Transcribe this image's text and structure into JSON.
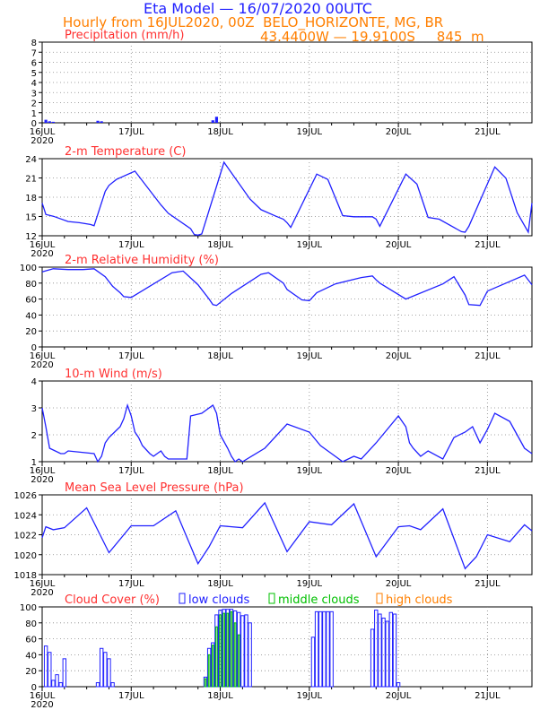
{
  "header": {
    "title": "Eta Model — 16/07/2020 00UTC",
    "subtitle": "Hourly from 16JUL2020, 00Z  BELO_HORIZONTE, MG, BR",
    "location": "43.4400W — 19.9100S     845  m",
    "title_color": "#2020ff",
    "subtitle_color": "#ff7f00"
  },
  "x_axis": {
    "days": [
      "16JUL",
      "17JUL",
      "18JUL",
      "19JUL",
      "20JUL",
      "21JUL"
    ],
    "year": "2020",
    "range_hours": [
      0,
      132
    ]
  },
  "legend": {
    "low": "low clouds",
    "middle": "middle clouds",
    "high": "high clouds",
    "low_color": "#2020ff",
    "middle_color": "#00c000",
    "high_color": "#ff7f00"
  },
  "chart_data": [
    {
      "type": "bar",
      "title": "Precipitation (mm/h)",
      "ylim": [
        0,
        8
      ],
      "yticks": [
        "0",
        "1",
        "2",
        "3",
        "4",
        "5",
        "6",
        "7",
        "8"
      ],
      "x": [
        1,
        2,
        3,
        15,
        16,
        46,
        47
      ],
      "values": [
        0.3,
        0.15,
        0.1,
        0.2,
        0.15,
        0.25,
        0.6
      ],
      "color": "#2020ff",
      "grid": true
    },
    {
      "type": "line",
      "title": "2-m Temperature (C)",
      "ylim": [
        12,
        25
      ],
      "yticks": [
        "12",
        "15",
        "18",
        "21",
        "24"
      ],
      "x": [
        0,
        1,
        3,
        7,
        10,
        13,
        14,
        17,
        18,
        20,
        25,
        32,
        34,
        40,
        41,
        42,
        43,
        49,
        56,
        59,
        63,
        65,
        66,
        67,
        74,
        77,
        81,
        84,
        89,
        90,
        91,
        98,
        101,
        104,
        107,
        113,
        114,
        115,
        122,
        125,
        128,
        131,
        132
      ],
      "values": [
        17.5,
        15.6,
        15.3,
        14.4,
        14.2,
        13.9,
        13.7,
        19.5,
        20.5,
        21.5,
        22.9,
        17.2,
        15.8,
        13.2,
        12.2,
        12.1,
        12.3,
        24.4,
        18.2,
        16.4,
        15.3,
        14.8,
        14.2,
        13.4,
        22.4,
        21.5,
        15.4,
        15.2,
        15.2,
        14.8,
        13.6,
        22.4,
        20.7,
        15.1,
        14.8,
        12.7,
        12.6,
        13.6,
        23.6,
        21.7,
        15.9,
        12.6,
        17.5
      ],
      "color": "#2020ff",
      "grid": true
    },
    {
      "type": "line",
      "title": "2-m Relative Humidity (%)",
      "ylim": [
        0,
        100
      ],
      "yticks": [
        "0",
        "20",
        "40",
        "60",
        "80",
        "100"
      ],
      "x": [
        0,
        3,
        7,
        11,
        14,
        17,
        19,
        21,
        22,
        24,
        35,
        38,
        42,
        45,
        46,
        47,
        51,
        59,
        61,
        65,
        66,
        70,
        72,
        74,
        79,
        86,
        89,
        90,
        91,
        98,
        108,
        111,
        114,
        115,
        118,
        120,
        130,
        132
      ],
      "values": [
        94,
        98,
        97,
        97,
        98,
        88,
        76,
        68,
        63,
        62,
        93,
        95,
        78,
        60,
        53,
        52,
        67,
        91,
        93,
        80,
        72,
        59,
        58,
        68,
        79,
        87,
        89,
        84,
        80,
        60,
        79,
        88,
        65,
        53,
        52,
        70,
        90,
        78
      ],
      "color": "#2020ff",
      "grid": true
    },
    {
      "type": "line",
      "title": "10-m Wind (m/s)",
      "ylim": [
        1,
        4
      ],
      "yticks": [
        "1",
        "2",
        "3",
        "4"
      ],
      "x": [
        0,
        1,
        2,
        5,
        6,
        7,
        14,
        15,
        16,
        17,
        18,
        21,
        22,
        23,
        24,
        25,
        26,
        27,
        29,
        30,
        31,
        32,
        33,
        34,
        35,
        36,
        39,
        40,
        43,
        46,
        47,
        48,
        50,
        51,
        52,
        53,
        54,
        60,
        66,
        72,
        75,
        78,
        81,
        84,
        86,
        90,
        96,
        98,
        99,
        100,
        102,
        104,
        108,
        111,
        114,
        116,
        118,
        120,
        122,
        126,
        130,
        132
      ],
      "values": [
        3.0,
        2.3,
        1.5,
        1.3,
        1.3,
        1.4,
        1.3,
        1.0,
        1.2,
        1.7,
        1.9,
        2.3,
        2.6,
        3.1,
        2.7,
        2.1,
        1.9,
        1.6,
        1.3,
        1.2,
        1.3,
        1.4,
        1.2,
        1.1,
        1.1,
        1.1,
        1.1,
        2.7,
        2.8,
        3.1,
        2.8,
        2.0,
        1.5,
        1.2,
        1.0,
        1.1,
        1.0,
        1.5,
        2.4,
        2.1,
        1.6,
        1.3,
        1.0,
        1.2,
        1.1,
        1.7,
        2.7,
        2.3,
        1.7,
        1.5,
        1.2,
        1.4,
        1.1,
        1.9,
        2.1,
        2.3,
        1.7,
        2.2,
        2.8,
        2.5,
        1.5,
        1.3
      ],
      "color": "#2020ff",
      "grid": true
    },
    {
      "type": "line",
      "title": "Mean Sea Level Pressure (hPa)",
      "ylim": [
        1018,
        1026
      ],
      "yticks": [
        "1018",
        "1020",
        "1022",
        "1024",
        "1026"
      ],
      "x": [
        0,
        1,
        3,
        6,
        12,
        18,
        24,
        30,
        36,
        42,
        45,
        48,
        54,
        60,
        66,
        72,
        78,
        84,
        90,
        96,
        99,
        102,
        108,
        114,
        117,
        120,
        126,
        130,
        132
      ],
      "values": [
        1021.7,
        1022.8,
        1022.5,
        1022.7,
        1024.7,
        1020.2,
        1022.9,
        1022.9,
        1024.4,
        1019.1,
        1020.8,
        1022.9,
        1022.7,
        1025.2,
        1020.3,
        1023.3,
        1023.0,
        1025.1,
        1019.8,
        1022.8,
        1022.9,
        1022.5,
        1024.6,
        1018.6,
        1019.8,
        1022.0,
        1021.3,
        1023.0,
        1022.4
      ],
      "color": "#2020ff",
      "grid": true
    },
    {
      "type": "bar",
      "title": "Cloud Cover (%)",
      "ylim": [
        0,
        100
      ],
      "yticks": [
        "0",
        "20",
        "40",
        "60",
        "80",
        "100"
      ],
      "series": [
        {
          "name": "low clouds",
          "x": [
            1,
            2,
            3,
            4,
            5,
            6,
            15,
            16,
            17,
            18,
            19,
            44,
            45,
            46,
            47,
            48,
            49,
            50,
            51,
            52,
            53,
            54,
            55,
            56,
            73,
            74,
            75,
            76,
            77,
            78,
            89,
            90,
            91,
            92,
            93,
            94,
            95,
            96
          ],
          "values": [
            51,
            43,
            8,
            15,
            5,
            35,
            5,
            48,
            43,
            35,
            5,
            12,
            48,
            55,
            90,
            96,
            97,
            97,
            97,
            95,
            93,
            89,
            90,
            80,
            62,
            94,
            94,
            94,
            94,
            94,
            72,
            96,
            91,
            86,
            82,
            93,
            91,
            5
          ],
          "color": "#2020ff"
        },
        {
          "name": "middle clouds",
          "x": [
            44,
            45,
            46,
            47,
            48,
            49,
            50,
            51,
            52,
            53
          ],
          "values": [
            10,
            40,
            52,
            75,
            90,
            92,
            92,
            94,
            80,
            65
          ],
          "color": "#00c000"
        }
      ],
      "grid": true
    }
  ]
}
